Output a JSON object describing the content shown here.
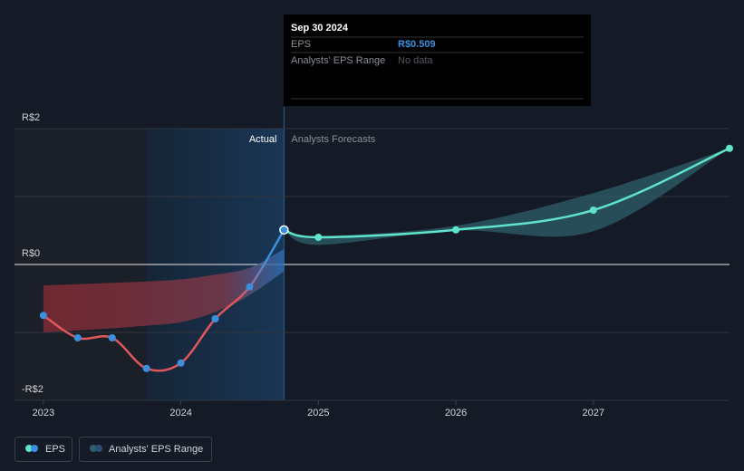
{
  "chart_data": {
    "type": "line",
    "xlim": [
      2022.79,
      2027.99
    ],
    "ylim": [
      -2,
      2
    ],
    "xticks": [
      2023,
      2024,
      2025,
      2026,
      2027
    ],
    "yticks": [
      {
        "value": -2,
        "label": "-R$2"
      },
      {
        "value": -1,
        "label": null
      },
      {
        "value": 0,
        "label": "R$0"
      },
      {
        "value": 1,
        "label": null
      },
      {
        "value": 2,
        "label": "R$2"
      }
    ],
    "grid": true,
    "highlight_start": 2023.75,
    "divider_x": 2024.75,
    "actual_label": "Actual",
    "forecast_label": "Analysts Forecasts",
    "series": [
      {
        "name": "EPS",
        "color": "#3b8fdf",
        "past_color": "#e0575b",
        "forecast_color": "#5fe3c9",
        "x": [
          2023,
          2023.25,
          2023.5,
          2023.75,
          2024,
          2024.25,
          2024.5,
          2024.75,
          2025,
          2026,
          2027,
          2027.99
        ],
        "values": [
          -0.75,
          -1.08,
          -1.08,
          -1.53,
          -1.45,
          -0.8,
          -0.33,
          0.509,
          0.4,
          0.51,
          0.8,
          1.71
        ]
      }
    ],
    "ranges": [
      {
        "name": "Analysts' EPS Range",
        "color": "#2e5f6a",
        "x": [
          2023,
          2023.25,
          2023.5,
          2023.75,
          2024,
          2024.25,
          2024.5,
          2024.75
        ],
        "high": [
          -0.31,
          -0.29,
          -0.27,
          -0.25,
          -0.22,
          -0.15,
          -0.05,
          0.23
        ],
        "low": [
          -1.0,
          -0.97,
          -0.94,
          -0.9,
          -0.85,
          -0.7,
          -0.45,
          -0.1
        ]
      },
      {
        "x": [
          2024.75,
          2025,
          2026,
          2027,
          2027.99
        ],
        "high": [
          0.509,
          0.42,
          0.57,
          1.05,
          1.71
        ],
        "low": [
          0.509,
          0.29,
          0.5,
          0.49,
          1.71
        ]
      }
    ],
    "tooltip": {
      "title": "Sep 30 2024",
      "rows": [
        {
          "label": "EPS",
          "value": "R$0.509"
        },
        {
          "label": "Analysts' EPS Range",
          "value": "No data"
        }
      ]
    }
  }
}
